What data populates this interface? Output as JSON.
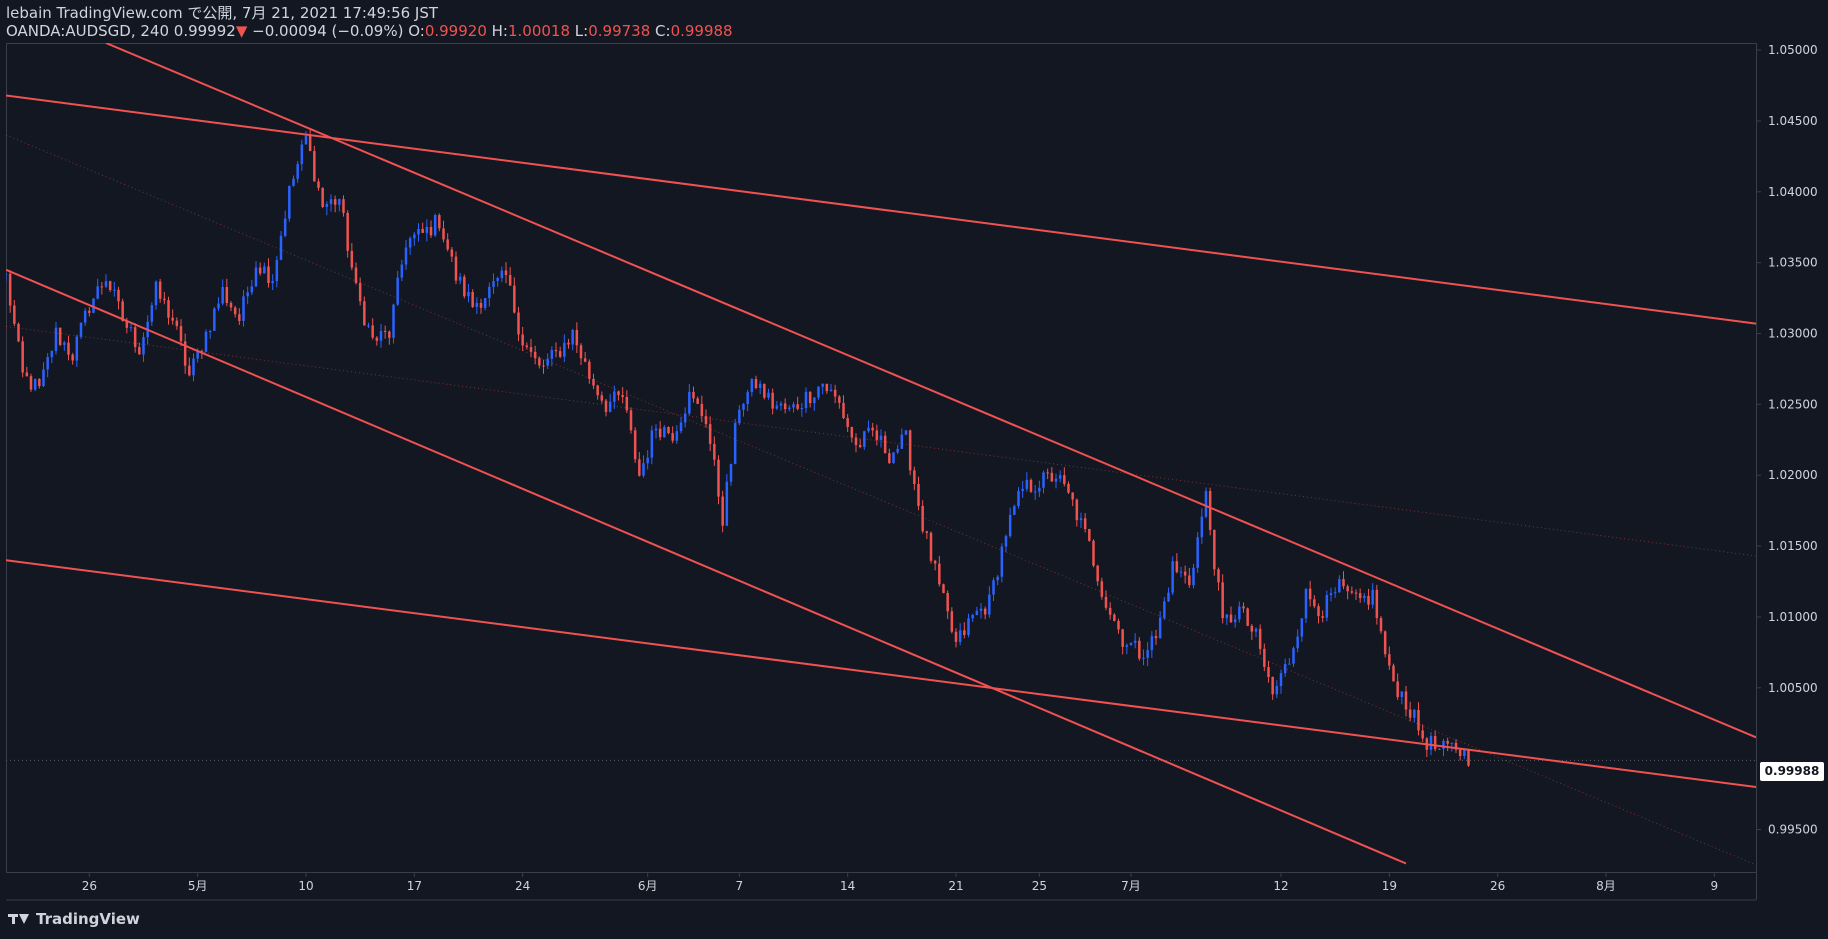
{
  "header": {
    "publish_line": "lebain TradingView.com で公開, 7月 21, 2021 17:49:56 JST",
    "symbol_line": "OANDA:AUDSGD, 240 0.99992",
    "change_arrow": "▼",
    "change": "−0.00094 (−0.09%)",
    "o_label": "O:",
    "o_value": "0.99920",
    "h_label": "H:",
    "h_value": "1.00018",
    "l_label": "L:",
    "l_value": "0.99738",
    "c_label": "C:",
    "c_value": "0.99988"
  },
  "brand": {
    "name": "TradingView"
  },
  "last_price": {
    "label": "0.99988",
    "value": 0.99988
  },
  "colors": {
    "background": "#131722",
    "up": "#2962ff",
    "down": "#ef5350",
    "line": "#f05252",
    "text": "#d1d4dc",
    "grid_border": "#3a3e4a"
  },
  "chart_data": {
    "type": "candlestick",
    "title": "OANDA:AUDSGD, 240",
    "timeframe": "240",
    "ylim": [
      0.992,
      1.0505
    ],
    "y_ticks": [
      {
        "label": "1.05000",
        "value": 1.05
      },
      {
        "label": "1.04500",
        "value": 1.045
      },
      {
        "label": "1.04000",
        "value": 1.04
      },
      {
        "label": "1.03500",
        "value": 1.035
      },
      {
        "label": "1.03000",
        "value": 1.03
      },
      {
        "label": "1.02500",
        "value": 1.025
      },
      {
        "label": "1.02000",
        "value": 1.02
      },
      {
        "label": "1.01500",
        "value": 1.015
      },
      {
        "label": "1.01000",
        "value": 1.01
      },
      {
        "label": "1.00500",
        "value": 1.005
      },
      {
        "label": "0.99500",
        "value": 0.995
      }
    ],
    "x_domain": [
      0,
      105
    ],
    "x_ticks": [
      {
        "label": "26",
        "x": 5
      },
      {
        "label": "5月",
        "x": 11.5
      },
      {
        "label": "10",
        "x": 18
      },
      {
        "label": "17",
        "x": 24.5
      },
      {
        "label": "24",
        "x": 31
      },
      {
        "label": "6月",
        "x": 38.5
      },
      {
        "label": "7",
        "x": 44
      },
      {
        "label": "14",
        "x": 50.5
      },
      {
        "label": "21",
        "x": 57
      },
      {
        "label": "25",
        "x": 62
      },
      {
        "label": "7月",
        "x": 67.5
      },
      {
        "label": "12",
        "x": 76.5
      },
      {
        "label": "19",
        "x": 83
      },
      {
        "label": "26",
        "x": 89.5
      },
      {
        "label": "8月",
        "x": 96
      },
      {
        "label": "9",
        "x": 102.5
      }
    ],
    "close_path": [
      [
        0,
        1.034
      ],
      [
        1,
        1.027
      ],
      [
        2,
        1.026
      ],
      [
        3,
        1.03
      ],
      [
        4,
        1.0285
      ],
      [
        5,
        1.032
      ],
      [
        6,
        1.034
      ],
      [
        7,
        1.031
      ],
      [
        8,
        1.029
      ],
      [
        9,
        1.033
      ],
      [
        10,
        1.031
      ],
      [
        11,
        1.027
      ],
      [
        12,
        1.03
      ],
      [
        13,
        1.033
      ],
      [
        14,
        1.031
      ],
      [
        15,
        1.035
      ],
      [
        16,
        1.034
      ],
      [
        17,
        1.04
      ],
      [
        18,
        1.0438
      ],
      [
        19,
        1.039
      ],
      [
        20,
        1.0395
      ],
      [
        21,
        1.033
      ],
      [
        22,
        1.0295
      ],
      [
        23,
        1.03
      ],
      [
        24,
        1.0365
      ],
      [
        25,
        1.037
      ],
      [
        26,
        1.038
      ],
      [
        27,
        1.034
      ],
      [
        28,
        1.032
      ],
      [
        29,
        1.033
      ],
      [
        30,
        1.034
      ],
      [
        31,
        1.0295
      ],
      [
        32,
        1.0275
      ],
      [
        33,
        1.0285
      ],
      [
        34,
        1.03
      ],
      [
        35,
        1.027
      ],
      [
        36,
        1.025
      ],
      [
        37,
        1.0255
      ],
      [
        38,
        1.02
      ],
      [
        39,
        1.0235
      ],
      [
        40,
        1.023
      ],
      [
        41,
        1.0255
      ],
      [
        42,
        1.024
      ],
      [
        43,
        1.017
      ],
      [
        44,
        1.025
      ],
      [
        45,
        1.0265
      ],
      [
        46,
        1.025
      ],
      [
        47,
        1.0245
      ],
      [
        48,
        1.0255
      ],
      [
        49,
        1.0265
      ],
      [
        50,
        1.025
      ],
      [
        51,
        1.022
      ],
      [
        52,
        1.023
      ],
      [
        53,
        1.0215
      ],
      [
        54,
        1.0225
      ],
      [
        55,
        1.0165
      ],
      [
        56,
        1.012
      ],
      [
        57,
        1.008
      ],
      [
        58,
        1.01
      ],
      [
        59,
        1.011
      ],
      [
        60,
        1.016
      ],
      [
        61,
        1.019
      ],
      [
        62,
        1.0195
      ],
      [
        63,
        1.02
      ],
      [
        64,
        1.018
      ],
      [
        65,
        1.015
      ],
      [
        66,
        1.011
      ],
      [
        67,
        1.0085
      ],
      [
        68,
        1.0075
      ],
      [
        69,
        1.0085
      ],
      [
        70,
        1.0135
      ],
      [
        71,
        1.0125
      ],
      [
        72,
        1.0185
      ],
      [
        73,
        1.0095
      ],
      [
        74,
        1.0105
      ],
      [
        75,
        1.0085
      ],
      [
        76,
        1.0045
      ],
      [
        77,
        1.007
      ],
      [
        78,
        1.0115
      ],
      [
        79,
        1.0105
      ],
      [
        80,
        1.012
      ],
      [
        81,
        1.011
      ],
      [
        82,
        1.0115
      ],
      [
        83,
        1.006
      ],
      [
        84,
        1.004
      ],
      [
        85,
        1.0015
      ],
      [
        86,
        1.0005
      ],
      [
        87,
        1.0008
      ],
      [
        88,
        0.9999
      ]
    ],
    "trendlines": [
      {
        "name": "trendline-upper-long",
        "style": "solid",
        "from": [
          0,
          1.0468
        ],
        "to": [
          105,
          1.0307
        ]
      },
      {
        "name": "trendline-upper-channel",
        "style": "solid",
        "from": [
          6,
          1.0505
        ],
        "to": [
          105,
          1.0015
        ]
      },
      {
        "name": "trendline-lower-channel",
        "style": "solid",
        "from": [
          0,
          1.0345
        ],
        "to": [
          84,
          0.9926
        ]
      },
      {
        "name": "trendline-lower-long",
        "style": "solid",
        "from": [
          0,
          1.014
        ],
        "to": [
          105,
          0.998
        ]
      },
      {
        "name": "trendline-dotted-mid",
        "style": "dotted",
        "from": [
          0,
          1.044
        ],
        "to": [
          105,
          0.9925
        ]
      },
      {
        "name": "trendline-dotted-upper",
        "style": "dotted",
        "from": [
          0,
          1.0305
        ],
        "to": [
          105,
          1.0143
        ]
      }
    ]
  }
}
